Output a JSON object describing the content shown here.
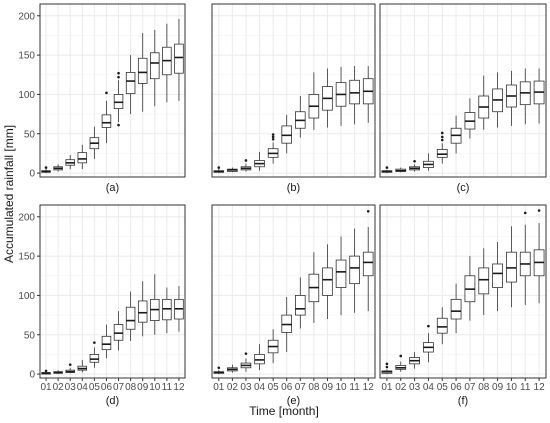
{
  "figure": {
    "xlabel": "Time [month]",
    "ylabel": "Accumulated rainfall [mm]"
  },
  "chart_data": {
    "type": "boxplot",
    "categories": [
      "01",
      "02",
      "03",
      "04",
      "05",
      "06",
      "07",
      "08",
      "09",
      "10",
      "11",
      "12"
    ],
    "ylim": [
      -5,
      215
    ],
    "yticks": [
      0,
      50,
      100,
      150,
      200
    ],
    "grid": true,
    "colors": {
      "box_fill": "#ffffff",
      "box_stroke": "#333333",
      "grid": "#ebebeb",
      "panel_border": "#333333"
    },
    "panels": [
      {
        "label": "(a)",
        "boxes": [
          {
            "min": 0,
            "q1": 1,
            "median": 2,
            "q3": 3,
            "max": 5,
            "outliers": [
              7
            ]
          },
          {
            "min": 2,
            "q1": 4,
            "median": 6,
            "q3": 8,
            "max": 11,
            "outliers": []
          },
          {
            "min": 5,
            "q1": 10,
            "median": 13,
            "q3": 17,
            "max": 23,
            "outliers": []
          },
          {
            "min": 5,
            "q1": 13,
            "median": 18,
            "q3": 26,
            "max": 36,
            "outliers": []
          },
          {
            "min": 18,
            "q1": 31,
            "median": 38,
            "q3": 45,
            "max": 59,
            "outliers": []
          },
          {
            "min": 38,
            "q1": 58,
            "median": 64,
            "q3": 74,
            "max": 92,
            "outliers": [
              102
            ]
          },
          {
            "min": 65,
            "q1": 82,
            "median": 90,
            "q3": 100,
            "max": 118,
            "outliers": [
              61,
              122,
              127
            ]
          },
          {
            "min": 75,
            "q1": 101,
            "median": 117,
            "q3": 128,
            "max": 150,
            "outliers": []
          },
          {
            "min": 78,
            "q1": 114,
            "median": 128,
            "q3": 146,
            "max": 178,
            "outliers": []
          },
          {
            "min": 85,
            "q1": 120,
            "median": 140,
            "q3": 153,
            "max": 182,
            "outliers": []
          },
          {
            "min": 90,
            "q1": 125,
            "median": 143,
            "q3": 160,
            "max": 190,
            "outliers": []
          },
          {
            "min": 92,
            "q1": 127,
            "median": 147,
            "q3": 164,
            "max": 196,
            "outliers": []
          }
        ]
      },
      {
        "label": "(b)",
        "boxes": [
          {
            "min": 0,
            "q1": 1,
            "median": 2,
            "q3": 3,
            "max": 5,
            "outliers": [
              7
            ]
          },
          {
            "min": 1,
            "q1": 2,
            "median": 4,
            "q3": 5,
            "max": 7,
            "outliers": []
          },
          {
            "min": 2,
            "q1": 4,
            "median": 6,
            "q3": 8,
            "max": 12,
            "outliers": [
              16
            ]
          },
          {
            "min": 3,
            "q1": 8,
            "median": 12,
            "q3": 16,
            "max": 27,
            "outliers": []
          },
          {
            "min": 12,
            "q1": 20,
            "median": 25,
            "q3": 31,
            "max": 39,
            "outliers": [
              43,
              46,
              49
            ]
          },
          {
            "min": 25,
            "q1": 38,
            "median": 48,
            "q3": 60,
            "max": 74,
            "outliers": []
          },
          {
            "min": 45,
            "q1": 57,
            "median": 67,
            "q3": 78,
            "max": 98,
            "outliers": []
          },
          {
            "min": 55,
            "q1": 70,
            "median": 85,
            "q3": 100,
            "max": 128,
            "outliers": []
          },
          {
            "min": 58,
            "q1": 80,
            "median": 95,
            "q3": 110,
            "max": 133,
            "outliers": []
          },
          {
            "min": 60,
            "q1": 85,
            "median": 100,
            "q3": 115,
            "max": 135,
            "outliers": []
          },
          {
            "min": 62,
            "q1": 88,
            "median": 102,
            "q3": 118,
            "max": 136,
            "outliers": []
          },
          {
            "min": 64,
            "q1": 88,
            "median": 104,
            "q3": 120,
            "max": 136,
            "outliers": []
          }
        ]
      },
      {
        "label": "(c)",
        "boxes": [
          {
            "min": 0,
            "q1": 1,
            "median": 2,
            "q3": 3,
            "max": 4,
            "outliers": [
              7
            ]
          },
          {
            "min": 1,
            "q1": 2,
            "median": 3,
            "q3": 5,
            "max": 7,
            "outliers": []
          },
          {
            "min": 2,
            "q1": 4,
            "median": 6,
            "q3": 8,
            "max": 11,
            "outliers": [
              15
            ]
          },
          {
            "min": 3,
            "q1": 7,
            "median": 11,
            "q3": 15,
            "max": 25,
            "outliers": []
          },
          {
            "min": 12,
            "q1": 20,
            "median": 24,
            "q3": 30,
            "max": 38,
            "outliers": [
              42,
              46,
              51
            ]
          },
          {
            "min": 25,
            "q1": 38,
            "median": 48,
            "q3": 57,
            "max": 73,
            "outliers": []
          },
          {
            "min": 44,
            "q1": 56,
            "median": 66,
            "q3": 77,
            "max": 95,
            "outliers": []
          },
          {
            "min": 55,
            "q1": 70,
            "median": 84,
            "q3": 98,
            "max": 124,
            "outliers": []
          },
          {
            "min": 58,
            "q1": 78,
            "median": 93,
            "q3": 107,
            "max": 128,
            "outliers": []
          },
          {
            "min": 60,
            "q1": 84,
            "median": 98,
            "q3": 112,
            "max": 130,
            "outliers": []
          },
          {
            "min": 62,
            "q1": 87,
            "median": 102,
            "q3": 116,
            "max": 133,
            "outliers": []
          },
          {
            "min": 63,
            "q1": 88,
            "median": 103,
            "q3": 117,
            "max": 133,
            "outliers": []
          }
        ]
      },
      {
        "label": "(d)",
        "boxes": [
          {
            "min": 0,
            "q1": 0,
            "median": 1,
            "q3": 2,
            "max": 3,
            "outliers": [
              4
            ]
          },
          {
            "min": 0,
            "q1": 1,
            "median": 2,
            "q3": 3,
            "max": 5,
            "outliers": []
          },
          {
            "min": 1,
            "q1": 2,
            "median": 3,
            "q3": 5,
            "max": 8,
            "outliers": [
              12
            ]
          },
          {
            "min": 2,
            "q1": 5,
            "median": 7,
            "q3": 10,
            "max": 18,
            "outliers": []
          },
          {
            "min": 8,
            "q1": 15,
            "median": 19,
            "q3": 25,
            "max": 34,
            "outliers": [
              40
            ]
          },
          {
            "min": 20,
            "q1": 31,
            "median": 38,
            "q3": 48,
            "max": 63,
            "outliers": []
          },
          {
            "min": 30,
            "q1": 43,
            "median": 52,
            "q3": 63,
            "max": 80,
            "outliers": []
          },
          {
            "min": 42,
            "q1": 57,
            "median": 68,
            "q3": 85,
            "max": 105,
            "outliers": []
          },
          {
            "min": 48,
            "q1": 66,
            "median": 78,
            "q3": 93,
            "max": 118,
            "outliers": []
          },
          {
            "min": 50,
            "q1": 68,
            "median": 82,
            "q3": 95,
            "max": 127,
            "outliers": []
          },
          {
            "min": 52,
            "q1": 69,
            "median": 83,
            "q3": 95,
            "max": 110,
            "outliers": []
          },
          {
            "min": 54,
            "q1": 70,
            "median": 83,
            "q3": 95,
            "max": 112,
            "outliers": []
          }
        ]
      },
      {
        "label": "(e)",
        "boxes": [
          {
            "min": 0,
            "q1": 1,
            "median": 2,
            "q3": 3,
            "max": 5,
            "outliers": [
              8
            ]
          },
          {
            "min": 2,
            "q1": 4,
            "median": 6,
            "q3": 8,
            "max": 12,
            "outliers": []
          },
          {
            "min": 3,
            "q1": 8,
            "median": 11,
            "q3": 14,
            "max": 20,
            "outliers": [
              26
            ]
          },
          {
            "min": 5,
            "q1": 13,
            "median": 18,
            "q3": 25,
            "max": 38,
            "outliers": []
          },
          {
            "min": 14,
            "q1": 27,
            "median": 35,
            "q3": 43,
            "max": 57,
            "outliers": []
          },
          {
            "min": 28,
            "q1": 53,
            "median": 63,
            "q3": 75,
            "max": 98,
            "outliers": []
          },
          {
            "min": 58,
            "q1": 75,
            "median": 83,
            "q3": 100,
            "max": 123,
            "outliers": []
          },
          {
            "min": 65,
            "q1": 92,
            "median": 110,
            "q3": 127,
            "max": 155,
            "outliers": []
          },
          {
            "min": 70,
            "q1": 100,
            "median": 120,
            "q3": 135,
            "max": 165,
            "outliers": []
          },
          {
            "min": 75,
            "q1": 110,
            "median": 130,
            "q3": 145,
            "max": 175,
            "outliers": []
          },
          {
            "min": 78,
            "q1": 115,
            "median": 135,
            "q3": 150,
            "max": 185,
            "outliers": []
          },
          {
            "min": 80,
            "q1": 125,
            "median": 142,
            "q3": 155,
            "max": 187,
            "outliers": [
              207
            ]
          }
        ]
      },
      {
        "label": "(f)",
        "boxes": [
          {
            "min": 0,
            "q1": 1,
            "median": 3,
            "q3": 4,
            "max": 6,
            "outliers": [
              9,
              13
            ]
          },
          {
            "min": 3,
            "q1": 6,
            "median": 8,
            "q3": 11,
            "max": 16,
            "outliers": [
              23
            ]
          },
          {
            "min": 7,
            "q1": 13,
            "median": 17,
            "q3": 21,
            "max": 28,
            "outliers": []
          },
          {
            "min": 15,
            "q1": 28,
            "median": 34,
            "q3": 40,
            "max": 52,
            "outliers": [
              61
            ]
          },
          {
            "min": 38,
            "q1": 52,
            "median": 60,
            "q3": 71,
            "max": 85,
            "outliers": []
          },
          {
            "min": 52,
            "q1": 70,
            "median": 80,
            "q3": 95,
            "max": 115,
            "outliers": []
          },
          {
            "min": 68,
            "q1": 92,
            "median": 108,
            "q3": 125,
            "max": 150,
            "outliers": []
          },
          {
            "min": 75,
            "q1": 102,
            "median": 120,
            "q3": 135,
            "max": 160,
            "outliers": []
          },
          {
            "min": 80,
            "q1": 110,
            "median": 128,
            "q3": 140,
            "max": 168,
            "outliers": []
          },
          {
            "min": 85,
            "q1": 117,
            "median": 135,
            "q3": 155,
            "max": 188,
            "outliers": []
          },
          {
            "min": 88,
            "q1": 125,
            "median": 140,
            "q3": 155,
            "max": 190,
            "outliers": [
              205
            ]
          },
          {
            "min": 90,
            "q1": 125,
            "median": 142,
            "q3": 158,
            "max": 192,
            "outliers": [
              208
            ]
          }
        ]
      }
    ]
  }
}
